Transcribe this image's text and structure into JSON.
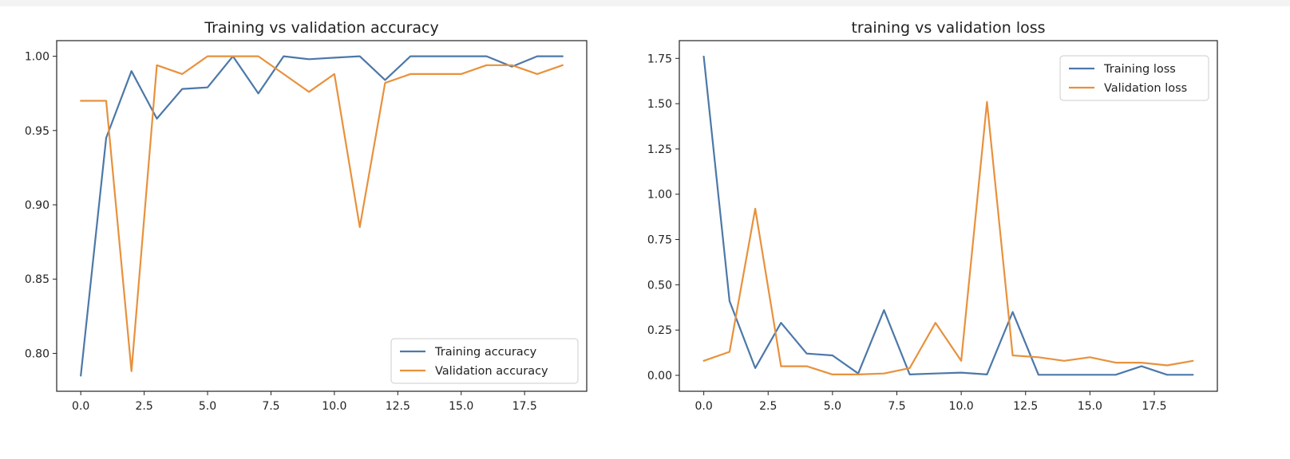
{
  "chart_data": [
    {
      "type": "line",
      "title": "Training vs validation accuracy",
      "xlabel": "",
      "ylabel": "",
      "xlim": [
        -0.95,
        19.95
      ],
      "ylim": [
        0.7745,
        1.0105
      ],
      "xticks": [
        0.0,
        2.5,
        5.0,
        7.5,
        10.0,
        12.5,
        15.0,
        17.5
      ],
      "xtick_labels": [
        "0.0",
        "2.5",
        "5.0",
        "7.5",
        "10.0",
        "12.5",
        "15.0",
        "17.5"
      ],
      "yticks": [
        0.8,
        0.85,
        0.9,
        0.95,
        1.0
      ],
      "ytick_labels": [
        "0.80",
        "0.85",
        "0.90",
        "0.95",
        "1.00"
      ],
      "legend_position": "lower-right",
      "grid": false,
      "x": [
        0,
        1,
        2,
        3,
        4,
        5,
        6,
        7,
        8,
        9,
        10,
        11,
        12,
        13,
        14,
        15,
        16,
        17,
        18,
        19
      ],
      "series": [
        {
          "name": "Training accuracy",
          "color": "#4c78a8",
          "values": [
            0.785,
            0.945,
            0.99,
            0.958,
            0.978,
            0.979,
            1.0,
            0.975,
            1.0,
            0.998,
            0.999,
            1.0,
            0.984,
            1.0,
            1.0,
            1.0,
            1.0,
            0.993,
            1.0,
            1.0
          ]
        },
        {
          "name": "Validation accuracy",
          "color": "#e8913c",
          "values": [
            0.97,
            0.97,
            0.788,
            0.994,
            0.988,
            1.0,
            1.0,
            1.0,
            0.988,
            0.976,
            0.988,
            0.885,
            0.982,
            0.988,
            0.988,
            0.988,
            0.994,
            0.994,
            0.988,
            0.994
          ]
        }
      ]
    },
    {
      "type": "line",
      "title": "training vs validation loss",
      "xlabel": "",
      "ylabel": "",
      "xlim": [
        -0.95,
        19.95
      ],
      "ylim": [
        -0.088,
        1.848
      ],
      "xticks": [
        0.0,
        2.5,
        5.0,
        7.5,
        10.0,
        12.5,
        15.0,
        17.5
      ],
      "xtick_labels": [
        "0.0",
        "2.5",
        "5.0",
        "7.5",
        "10.0",
        "12.5",
        "15.0",
        "17.5"
      ],
      "yticks": [
        0.0,
        0.25,
        0.5,
        0.75,
        1.0,
        1.25,
        1.5,
        1.75
      ],
      "ytick_labels": [
        "0.00",
        "0.25",
        "0.50",
        "0.75",
        "1.00",
        "1.25",
        "1.50",
        "1.75"
      ],
      "legend_position": "upper-right",
      "grid": false,
      "x": [
        0,
        1,
        2,
        3,
        4,
        5,
        6,
        7,
        8,
        9,
        10,
        11,
        12,
        13,
        14,
        15,
        16,
        17,
        18,
        19
      ],
      "series": [
        {
          "name": "Training loss",
          "color": "#4c78a8",
          "values": [
            1.76,
            0.41,
            0.04,
            0.29,
            0.12,
            0.11,
            0.01,
            0.36,
            0.005,
            0.01,
            0.015,
            0.005,
            0.35,
            0.003,
            0.003,
            0.003,
            0.003,
            0.05,
            0.003,
            0.003
          ]
        },
        {
          "name": "Validation loss",
          "color": "#e8913c",
          "values": [
            0.08,
            0.13,
            0.92,
            0.05,
            0.05,
            0.005,
            0.005,
            0.01,
            0.04,
            0.29,
            0.08,
            1.51,
            0.11,
            0.1,
            0.08,
            0.1,
            0.07,
            0.07,
            0.055,
            0.08
          ]
        }
      ]
    }
  ]
}
